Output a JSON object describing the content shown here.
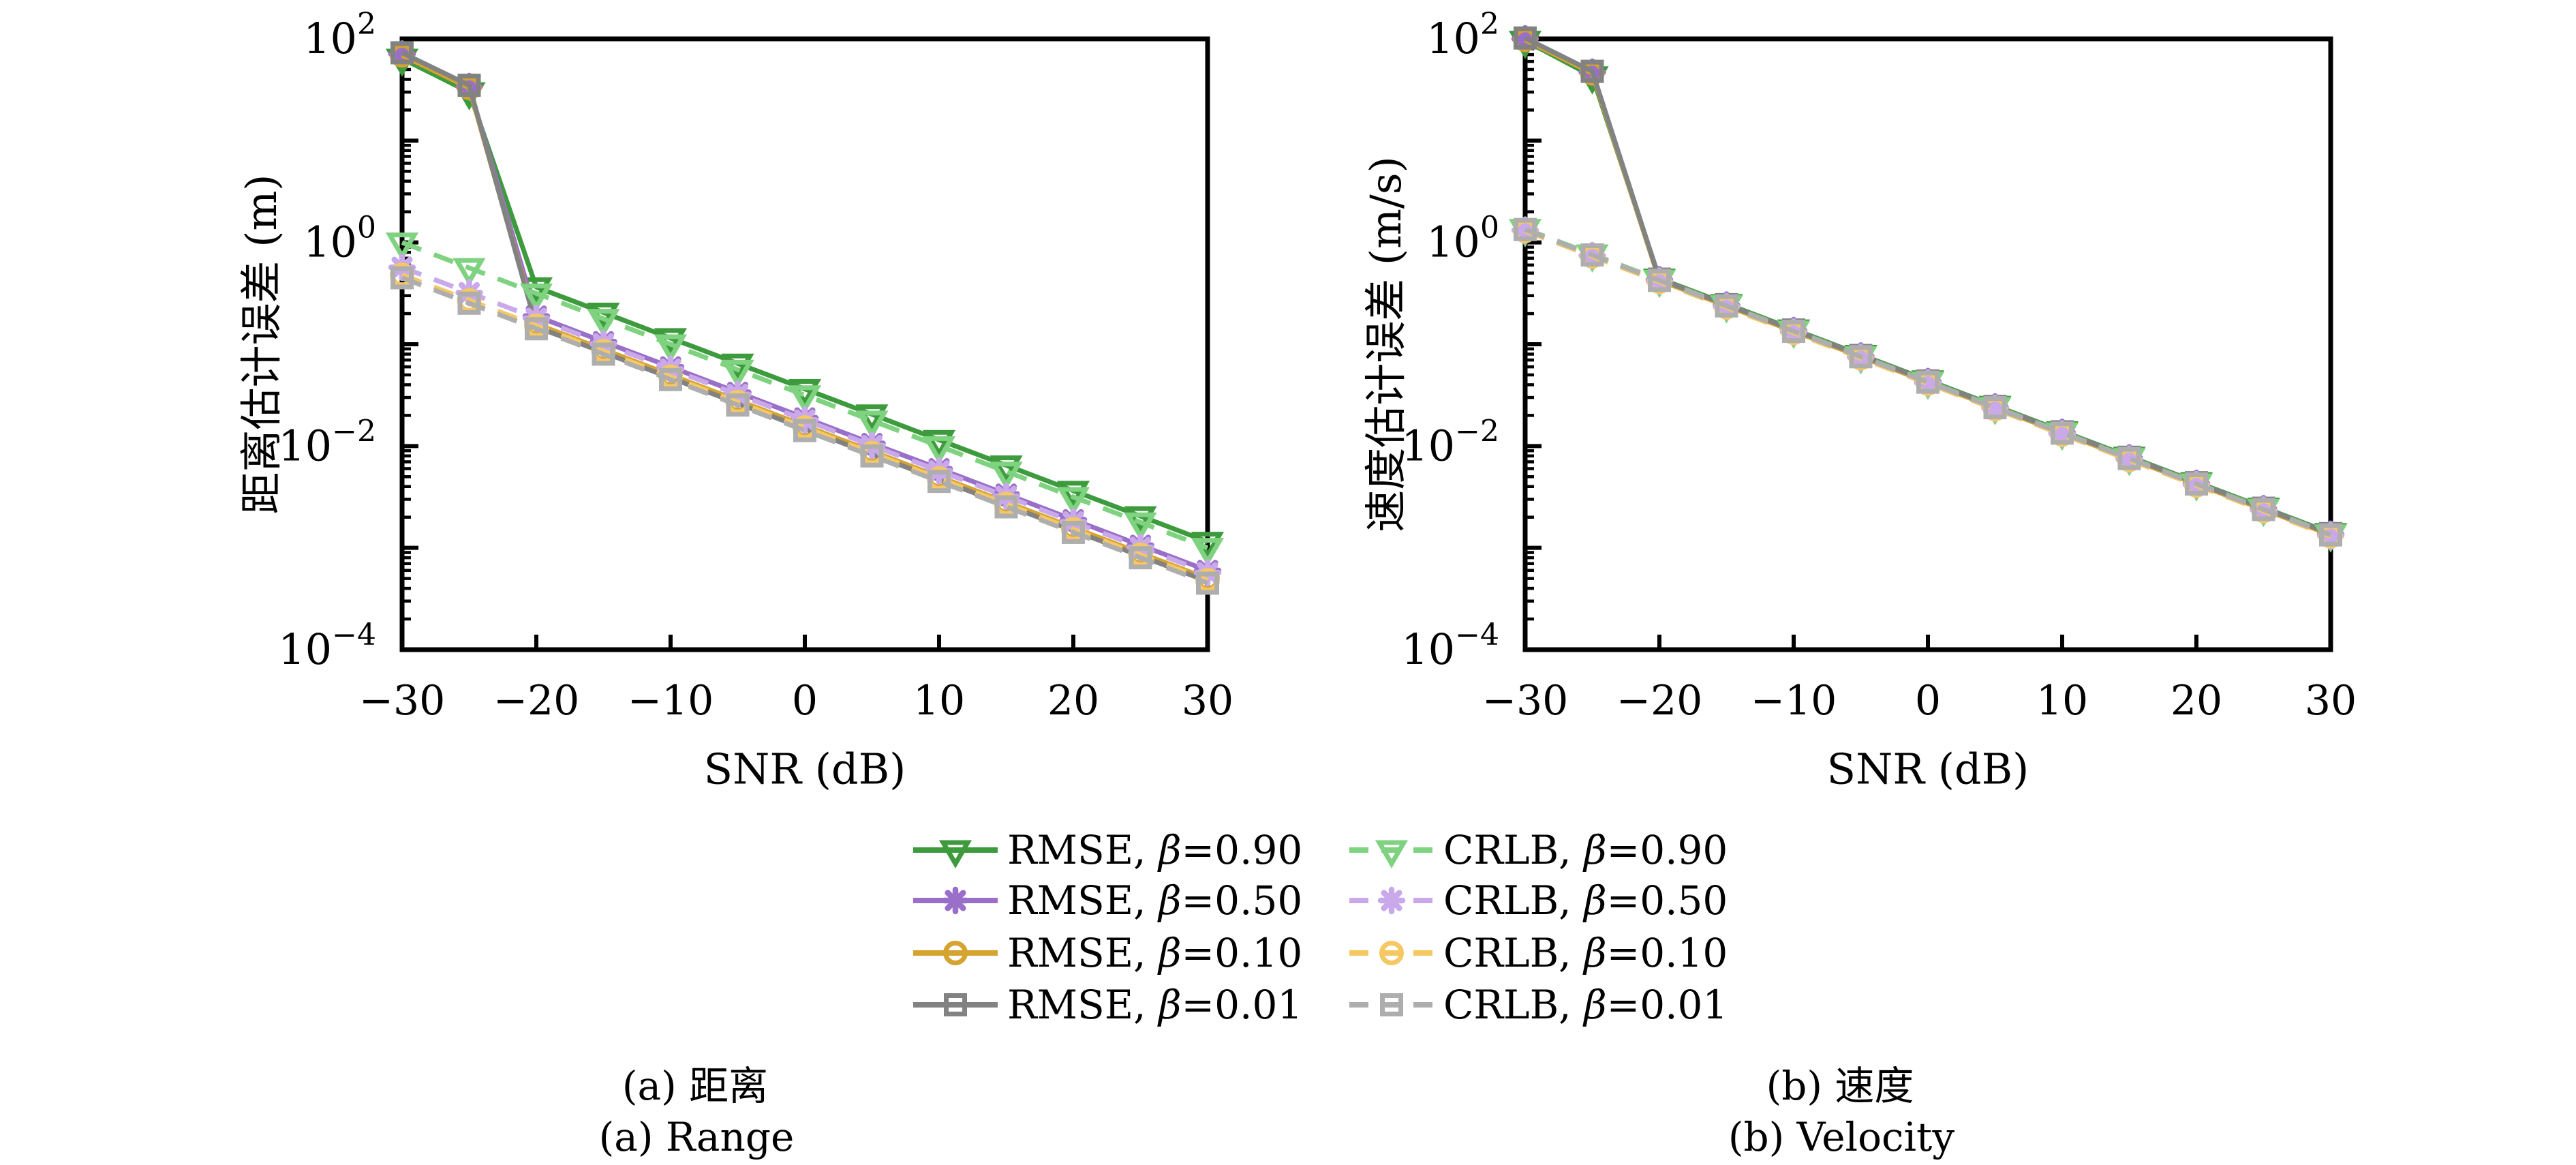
{
  "figure": {
    "left": {
      "ylabel": "距离估计误差 (m)",
      "xlabel": "SNR (dB)",
      "caption_zh": "(a) 距离",
      "caption_en": "(a) Range"
    },
    "right": {
      "ylabel": "速度估计误差 (m/s)",
      "xlabel": "SNR (dB)",
      "caption_zh": "(b) 速度",
      "caption_en": "(b) Velocity"
    },
    "legend": {
      "items": [
        {
          "label": "RMSE, β=0.90",
          "color": "#3d9b3d",
          "marker": "triangle-down",
          "dash": "solid",
          "column": 0,
          "row": 0
        },
        {
          "label": "RMSE, β=0.50",
          "color": "#9a6fc9",
          "marker": "asterisk",
          "dash": "solid",
          "column": 0,
          "row": 1
        },
        {
          "label": "RMSE, β=0.10",
          "color": "#d5a32f",
          "marker": "circle",
          "dash": "solid",
          "column": 0,
          "row": 2
        },
        {
          "label": "RMSE, β=0.01",
          "color": "#828282",
          "marker": "square",
          "dash": "solid",
          "column": 0,
          "row": 3
        },
        {
          "label": "CRLB, β=0.90",
          "color": "#7fd27f",
          "marker": "triangle-down",
          "dash": "dashed",
          "column": 1,
          "row": 0
        },
        {
          "label": "CRLB, β=0.50",
          "color": "#c9a9ea",
          "marker": "asterisk",
          "dash": "dashed",
          "column": 1,
          "row": 1
        },
        {
          "label": "CRLB, β=0.10",
          "color": "#f5c863",
          "marker": "circle",
          "dash": "dashed",
          "column": 1,
          "row": 2
        },
        {
          "label": "CRLB, β=0.01",
          "color": "#aeaeae",
          "marker": "square",
          "dash": "dashed",
          "column": 1,
          "row": 3
        }
      ]
    }
  },
  "chart_data": [
    {
      "type": "line",
      "id": "range",
      "title": "",
      "xlabel": "SNR (dB)",
      "ylabel": "距离估计误差 (m)",
      "x": [
        -30,
        -25,
        -20,
        -15,
        -10,
        -5,
        0,
        5,
        10,
        15,
        20,
        25,
        30
      ],
      "xticks": [
        -30,
        -20,
        -10,
        0,
        10,
        20,
        30
      ],
      "xlim": [
        -30,
        30
      ],
      "yscale": "log",
      "ylim": [
        0.0001,
        100
      ],
      "ytick_exponents": [
        2,
        0,
        -2,
        -4
      ],
      "grid": false,
      "series": [
        {
          "name": "RMSE, β=0.90",
          "color": "#3d9b3d",
          "marker": "triangle-down",
          "dash": "solid",
          "values": [
            64,
            30,
            0.364,
            0.205,
            0.115,
            0.0647,
            0.0364,
            0.0205,
            0.0115,
            0.00647,
            0.00364,
            0.00205,
            0.00115
          ]
        },
        {
          "name": "RMSE, β=0.50",
          "color": "#9a6fc9",
          "marker": "asterisk",
          "dash": "solid",
          "values": [
            71,
            34,
            0.189,
            0.106,
            0.0599,
            0.0337,
            0.0189,
            0.0106,
            0.00599,
            0.00337,
            0.00189,
            0.00106,
            0.000599
          ]
        },
        {
          "name": "RMSE, β=0.10",
          "color": "#d5a32f",
          "marker": "circle",
          "dash": "solid",
          "values": [
            69,
            33,
            0.158,
            0.0888,
            0.0499,
            0.0281,
            0.0158,
            0.00888,
            0.00499,
            0.00281,
            0.00158,
            0.000888,
            0.000499
          ]
        },
        {
          "name": "RMSE, β=0.01",
          "color": "#828282",
          "marker": "square",
          "dash": "solid",
          "values": [
            73,
            35,
            0.148,
            0.0832,
            0.0468,
            0.0263,
            0.0148,
            0.00832,
            0.00468,
            0.00263,
            0.00148,
            0.000832,
            0.000468
          ]
        },
        {
          "name": "CRLB, β=0.90",
          "color": "#7fd27f",
          "marker": "triangle-down",
          "dash": "dashed",
          "values": [
            1.0,
            0.562,
            0.316,
            0.178,
            0.1,
            0.0562,
            0.0316,
            0.0178,
            0.01,
            0.00562,
            0.00316,
            0.00178,
            0.001
          ]
        },
        {
          "name": "CRLB, β=0.50",
          "color": "#c9a9ea",
          "marker": "asterisk",
          "dash": "dashed",
          "values": [
            0.57,
            0.321,
            0.18,
            0.101,
            0.057,
            0.0321,
            0.018,
            0.0101,
            0.0057,
            0.00321,
            0.0018,
            0.00101,
            0.00057
          ]
        },
        {
          "name": "CRLB, β=0.10",
          "color": "#f5c863",
          "marker": "circle",
          "dash": "dashed",
          "values": [
            0.48,
            0.27,
            0.152,
            0.0854,
            0.048,
            0.027,
            0.0152,
            0.00854,
            0.0048,
            0.0027,
            0.00152,
            0.000854,
            0.00048
          ]
        },
        {
          "name": "CRLB, β=0.01",
          "color": "#aeaeae",
          "marker": "square",
          "dash": "dashed",
          "values": [
            0.45,
            0.253,
            0.142,
            0.08,
            0.045,
            0.0253,
            0.0142,
            0.008,
            0.0045,
            0.00253,
            0.00142,
            0.0008,
            0.00045
          ]
        }
      ]
    },
    {
      "type": "line",
      "id": "velocity",
      "title": "",
      "xlabel": "SNR (dB)",
      "ylabel": "速度估计误差 (m/s)",
      "x": [
        -30,
        -25,
        -20,
        -15,
        -10,
        -5,
        0,
        5,
        10,
        15,
        20,
        25,
        30
      ],
      "xticks": [
        -30,
        -20,
        -10,
        0,
        10,
        20,
        30
      ],
      "xlim": [
        -30,
        30
      ],
      "yscale": "log",
      "ylim": [
        0.0001,
        100
      ],
      "ytick_exponents": [
        2,
        0,
        -2,
        -4
      ],
      "grid": false,
      "series": [
        {
          "name": "RMSE, β=0.90",
          "color": "#3d9b3d",
          "marker": "triangle-down",
          "dash": "solid",
          "values": [
            96,
            43,
            0.443,
            0.249,
            0.14,
            0.0788,
            0.0443,
            0.0249,
            0.014,
            0.00788,
            0.00443,
            0.00249,
            0.0014
          ]
        },
        {
          "name": "RMSE, β=0.50",
          "color": "#9a6fc9",
          "marker": "asterisk",
          "dash": "solid",
          "values": [
            100,
            47,
            0.43,
            0.242,
            0.136,
            0.0765,
            0.043,
            0.0242,
            0.0136,
            0.00765,
            0.0043,
            0.00242,
            0.00136
          ]
        },
        {
          "name": "RMSE, β=0.10",
          "color": "#d5a32f",
          "marker": "circle",
          "dash": "solid",
          "values": [
            98,
            46,
            0.423,
            0.238,
            0.134,
            0.0753,
            0.0423,
            0.0238,
            0.0134,
            0.00753,
            0.00423,
            0.00238,
            0.00134
          ]
        },
        {
          "name": "RMSE, β=0.01",
          "color": "#828282",
          "marker": "square",
          "dash": "solid",
          "values": [
            102,
            48,
            0.436,
            0.245,
            0.138,
            0.0776,
            0.0436,
            0.0245,
            0.0138,
            0.00776,
            0.00436,
            0.00245,
            0.00138
          ]
        },
        {
          "name": "CRLB, β=0.90",
          "color": "#7fd27f",
          "marker": "triangle-down",
          "dash": "dashed",
          "values": [
            1.36,
            0.765,
            0.43,
            0.242,
            0.136,
            0.0765,
            0.043,
            0.0242,
            0.0136,
            0.00765,
            0.0043,
            0.00242,
            0.00136
          ]
        },
        {
          "name": "CRLB, β=0.50",
          "color": "#c9a9ea",
          "marker": "asterisk",
          "dash": "dashed",
          "values": [
            1.32,
            0.742,
            0.417,
            0.235,
            0.132,
            0.0742,
            0.0417,
            0.0235,
            0.0132,
            0.00742,
            0.00417,
            0.00235,
            0.00132
          ]
        },
        {
          "name": "CRLB, β=0.10",
          "color": "#f5c863",
          "marker": "circle",
          "dash": "dashed",
          "values": [
            1.3,
            0.731,
            0.411,
            0.231,
            0.13,
            0.0731,
            0.0411,
            0.0231,
            0.013,
            0.00731,
            0.00411,
            0.00231,
            0.0013
          ]
        },
        {
          "name": "CRLB, β=0.01",
          "color": "#aeaeae",
          "marker": "square",
          "dash": "dashed",
          "values": [
            1.34,
            0.754,
            0.424,
            0.238,
            0.134,
            0.0754,
            0.0424,
            0.0238,
            0.0134,
            0.00754,
            0.00424,
            0.00238,
            0.00134
          ]
        }
      ]
    }
  ]
}
